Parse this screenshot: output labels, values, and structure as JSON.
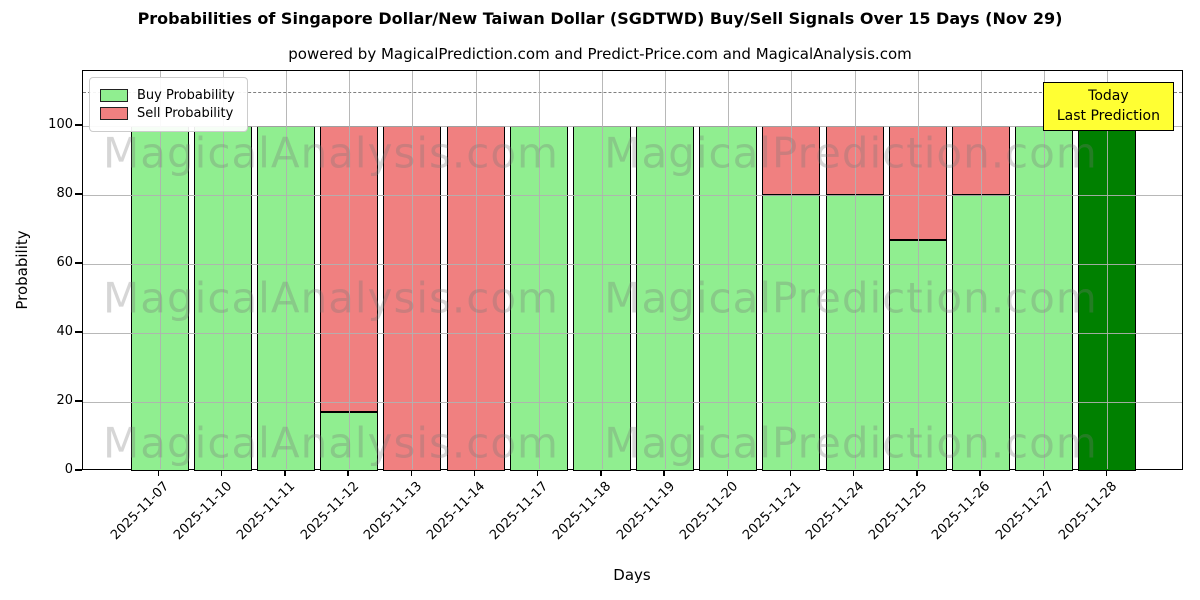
{
  "page": {
    "title": "Probabilities of Singapore Dollar/New Taiwan Dollar (SGDTWD) Buy/Sell Signals Over 15 Days (Nov 29)",
    "subtitle": "powered by MagicalPrediction.com and Predict-Price.com and MagicalAnalysis.com"
  },
  "axes": {
    "xlabel": "Days",
    "ylabel": "Probability",
    "yticks": [
      0,
      20,
      40,
      60,
      80,
      100
    ]
  },
  "legend": {
    "items": [
      {
        "label": "Buy Probability",
        "color": "#90ee90"
      },
      {
        "label": "Sell Probability",
        "color": "#f08080"
      }
    ]
  },
  "annotation": {
    "line1": "Today",
    "line2": "Last Prediction",
    "bg": "#ffff33"
  },
  "watermark": {
    "left": "MagicalAnalysis.com",
    "right": "MagicalPrediction.com"
  },
  "chart_data": {
    "type": "bar",
    "stacked": true,
    "title": "Probabilities of Singapore Dollar/New Taiwan Dollar (SGDTWD) Buy/Sell Signals Over 15 Days (Nov 29)",
    "xlabel": "Days",
    "ylabel": "Probability",
    "categories": [
      "2025-11-07",
      "2025-11-10",
      "2025-11-11",
      "2025-11-12",
      "2025-11-13",
      "2025-11-14",
      "2025-11-17",
      "2025-11-18",
      "2025-11-19",
      "2025-11-20",
      "2025-11-21",
      "2025-11-24",
      "2025-11-25",
      "2025-11-26",
      "2025-11-27",
      "2025-11-28"
    ],
    "series": [
      {
        "name": "Buy Probability",
        "color": "#90ee90",
        "values": [
          100,
          100,
          100,
          17,
          0,
          0,
          100,
          100,
          100,
          100,
          80,
          80,
          67,
          80,
          100,
          100
        ]
      },
      {
        "name": "Sell Probability",
        "color": "#f08080",
        "values": [
          0,
          0,
          0,
          83,
          100,
          100,
          0,
          0,
          0,
          0,
          20,
          20,
          33,
          20,
          0,
          0
        ]
      }
    ],
    "today_index": 15,
    "today_color": "#008000",
    "ylim": [
      0,
      116
    ],
    "ref_line_y": 110,
    "grid": true,
    "legend_position": "top-left",
    "bar_edge_color": "#000000"
  }
}
